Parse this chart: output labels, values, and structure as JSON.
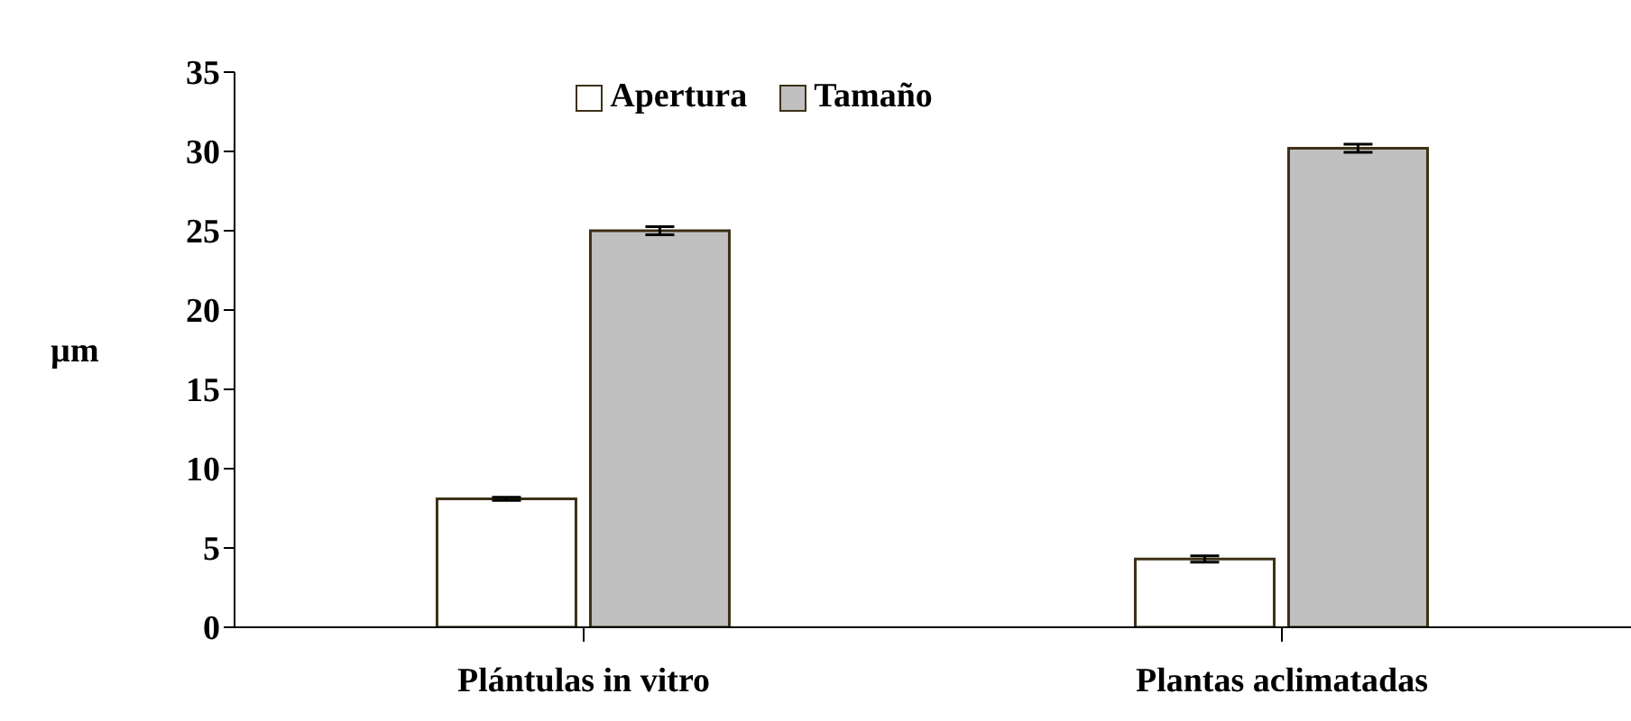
{
  "chart_data": {
    "type": "bar",
    "ylabel": "µm",
    "categories": [
      "Plántulas in vitro",
      "Plantas aclimatadas"
    ],
    "series": [
      {
        "name": "Apertura",
        "color": "#ffffff",
        "values": [
          8.1,
          4.3
        ],
        "errors": [
          0.1,
          0.2
        ]
      },
      {
        "name": "Tamaño",
        "color": "#c0c0c0",
        "values": [
          25.0,
          30.2
        ],
        "errors": [
          0.25,
          0.25
        ]
      }
    ],
    "ylim": [
      0,
      35
    ],
    "yticks": [
      0,
      5,
      10,
      15,
      20,
      25,
      30,
      35
    ],
    "grid": false,
    "legend": "top"
  }
}
